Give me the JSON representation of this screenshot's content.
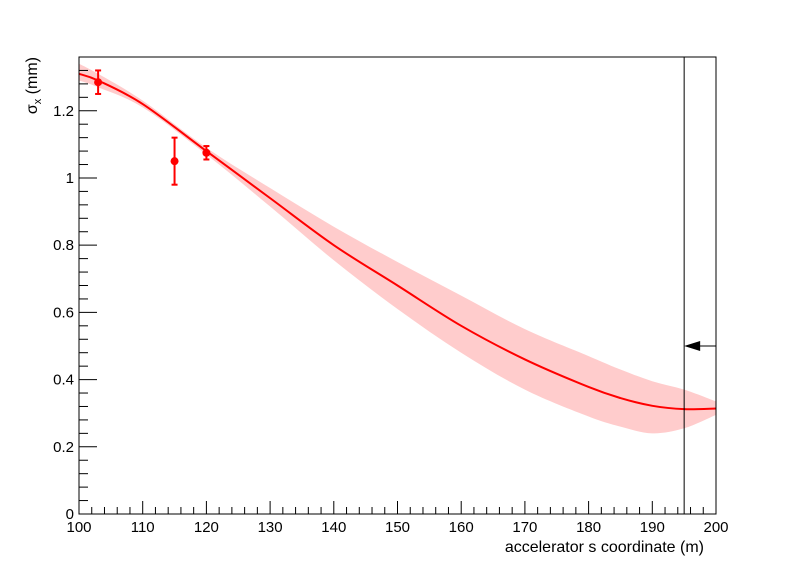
{
  "chart_data": {
    "type": "line",
    "title": "",
    "xlabel": "accelerator s coordinate (m)",
    "ylabel": "σ",
    "ylabel_sub": "x",
    "ylabel_unit": " (mm)",
    "xlim": [
      100,
      200
    ],
    "ylim": [
      0,
      1.36
    ],
    "x_ticks": [
      100,
      110,
      120,
      130,
      140,
      150,
      160,
      170,
      180,
      190,
      200
    ],
    "x_tick_labels": [
      "100",
      "110",
      "120",
      "130",
      "140",
      "150",
      "160",
      "170",
      "180",
      "190",
      "200"
    ],
    "y_ticks": [
      0,
      0.2,
      0.4,
      0.6,
      0.8,
      1.0,
      1.2
    ],
    "y_tick_labels": [
      "0",
      "0.2",
      "0.4",
      "0.6",
      "0.8",
      "1",
      "1.2"
    ],
    "grid": false,
    "colors": {
      "fit": "#ff0000",
      "band": "#ffcccc",
      "points": "#ff0000",
      "marker": "#000000"
    },
    "fit_curve": {
      "x": [
        100,
        103,
        110,
        120,
        130,
        140,
        150,
        160,
        170,
        180,
        185,
        190,
        195,
        200
      ],
      "y": [
        1.31,
        1.29,
        1.22,
        1.08,
        0.94,
        0.8,
        0.68,
        0.56,
        0.46,
        0.378,
        0.345,
        0.322,
        0.312,
        0.314
      ],
      "upper": [
        1.34,
        1.31,
        1.23,
        1.09,
        0.97,
        0.855,
        0.75,
        0.65,
        0.55,
        0.47,
        0.43,
        0.395,
        0.37,
        0.335
      ],
      "lower": [
        1.29,
        1.27,
        1.21,
        1.07,
        0.915,
        0.755,
        0.61,
        0.48,
        0.37,
        0.29,
        0.26,
        0.24,
        0.255,
        0.295
      ]
    },
    "data_points": [
      {
        "x": 103,
        "y": 1.285,
        "err": 0.035
      },
      {
        "x": 115,
        "y": 1.05,
        "err": 0.07
      },
      {
        "x": 120,
        "y": 1.075,
        "err": 0.02
      }
    ],
    "marker_line_x": 195,
    "arrow": {
      "x_from": 200,
      "x_to": 195,
      "y": 0.5
    }
  }
}
